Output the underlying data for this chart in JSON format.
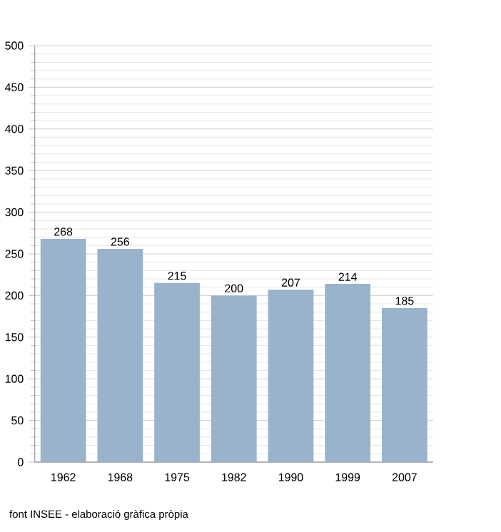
{
  "chart_data": {
    "type": "bar",
    "categories": [
      "1962",
      "1968",
      "1975",
      "1982",
      "1990",
      "1999",
      "2007"
    ],
    "values": [
      268,
      256,
      215,
      200,
      207,
      214,
      185
    ],
    "color": "#9ab3cc",
    "ylim": [
      0,
      500
    ],
    "yticks": [
      0,
      50,
      100,
      150,
      200,
      250,
      300,
      350,
      400,
      450,
      500
    ],
    "grid": "y",
    "data_labels": true,
    "annotations": [
      "font INSEE - elaboració gràfica pròpia"
    ]
  }
}
